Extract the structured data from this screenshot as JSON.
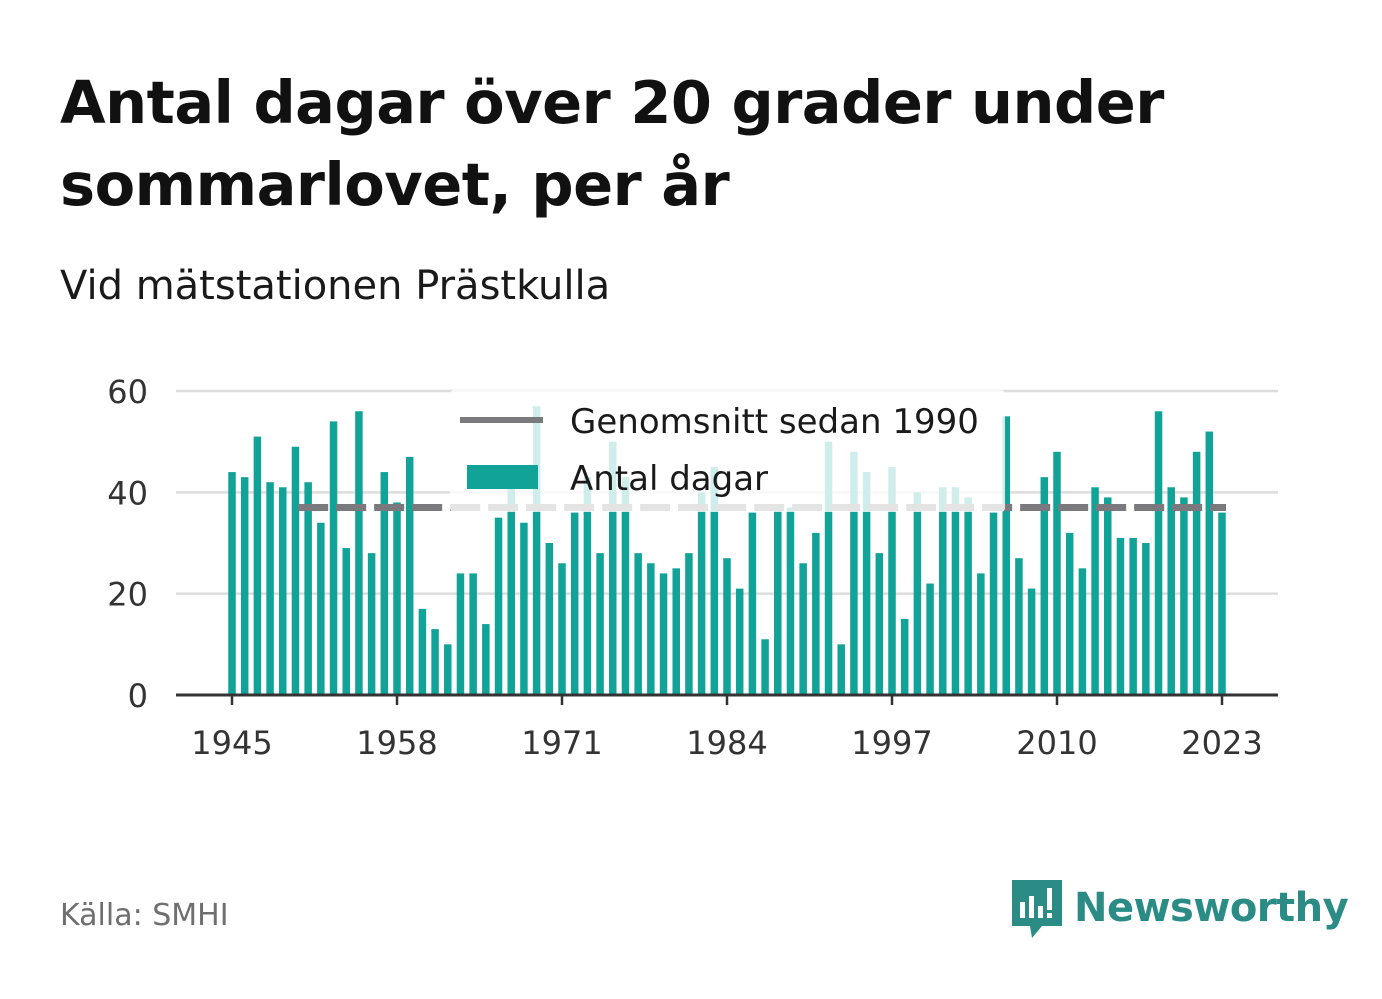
{
  "title": "Antal dagar över 20 grader under sommarlovet, per år",
  "subtitle": "Vid mätstationen Prästkulla",
  "source": "Källa: SMHI",
  "brand": {
    "name": "Newsworthy",
    "icon": "newsworthy-logo-icon"
  },
  "colors": {
    "bar": "#11a398",
    "average": "#7a7a7e",
    "axis": "#333333",
    "grid": "#dddddd",
    "brand": "#2b8c86"
  },
  "chart_data": {
    "type": "bar",
    "ylim": [
      0,
      60
    ],
    "yticks": [
      0,
      20,
      40,
      60
    ],
    "xticks": [
      1945,
      1958,
      1971,
      1984,
      1997,
      2010,
      2023
    ],
    "grid": true,
    "legend_position": "top-center",
    "legend": [
      {
        "label": "Genomsnitt sedan 1990",
        "kind": "line"
      },
      {
        "label": "Antal dagar",
        "kind": "bar"
      }
    ],
    "average": {
      "label": "Genomsnitt sedan 1990",
      "value": 37,
      "from": 1951,
      "to": 2023
    },
    "series": [
      {
        "name": "Antal dagar",
        "x": [
          1945,
          1946,
          1947,
          1948,
          1949,
          1950,
          1951,
          1952,
          1953,
          1954,
          1955,
          1956,
          1957,
          1958,
          1959,
          1960,
          1961,
          1962,
          1963,
          1964,
          1965,
          1966,
          1967,
          1968,
          1969,
          1970,
          1971,
          1972,
          1973,
          1974,
          1975,
          1976,
          1977,
          1978,
          1979,
          1980,
          1981,
          1982,
          1983,
          1984,
          1985,
          1986,
          1987,
          1988,
          1989,
          1990,
          1991,
          1992,
          1993,
          1994,
          1995,
          1996,
          1997,
          1998,
          1999,
          2000,
          2001,
          2002,
          2003,
          2004,
          2005,
          2006,
          2007,
          2008,
          2009,
          2010,
          2011,
          2012,
          2013,
          2014,
          2015,
          2016,
          2017,
          2018,
          2019,
          2020,
          2021,
          2022,
          2023
        ],
        "values": [
          44,
          43,
          51,
          42,
          41,
          49,
          42,
          34,
          54,
          29,
          56,
          28,
          44,
          38,
          47,
          17,
          13,
          10,
          24,
          24,
          14,
          35,
          41,
          34,
          57,
          30,
          26,
          36,
          43,
          28,
          50,
          43,
          28,
          26,
          24,
          25,
          28,
          40,
          45,
          27,
          21,
          36,
          11,
          37,
          37,
          26,
          32,
          50,
          10,
          48,
          44,
          28,
          45,
          15,
          40,
          22,
          41,
          41,
          39,
          24,
          36,
          55,
          27,
          21,
          43,
          48,
          32,
          25,
          41,
          39,
          31,
          31,
          30,
          56,
          41,
          39,
          48,
          52,
          36
        ]
      }
    ]
  }
}
